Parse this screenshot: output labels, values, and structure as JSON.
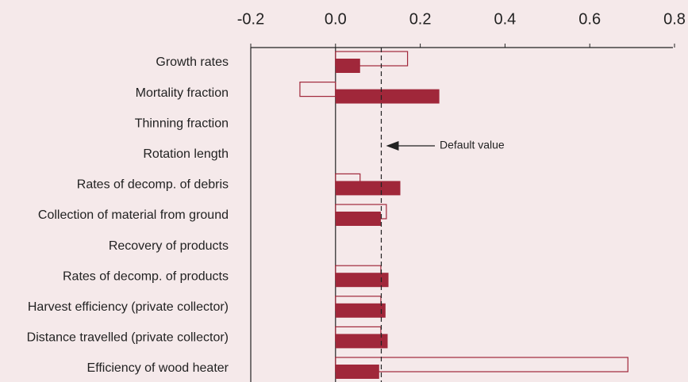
{
  "chart_data": {
    "type": "barh",
    "categories": [
      "Growth rates",
      "Mortality fraction",
      "Thinning fraction",
      "Rotation length",
      "Rates of decomp. of debris",
      "Collection of material from ground",
      "Recovery of products",
      "Rates of decomp. of products",
      "Harvest efficiency (private collector)",
      "Distance travelled (private collector)",
      "Efficiency of wood heater"
    ],
    "series": [
      {
        "color": "#a0273a",
        "filled": false,
        "values": [
          0.17,
          -0.084,
          null,
          null,
          0.058,
          0.12,
          null,
          0.107,
          0.107,
          0.107,
          0.69
        ]
      },
      {
        "color": "#a0273a",
        "filled": true,
        "values": [
          0.058,
          0.245,
          null,
          null,
          0.153,
          0.107,
          null,
          0.125,
          0.118,
          0.123,
          0.103
        ]
      }
    ],
    "xlim": [
      -0.2,
      0.8
    ],
    "xticks": [
      {
        "value": -0.2,
        "label": "-0.2"
      },
      {
        "value": 0,
        "label": "0.0"
      },
      0.2,
      0.4,
      0.6,
      0.8
    ],
    "reference_line": {
      "value": 0.108,
      "label": "Default value"
    }
  }
}
